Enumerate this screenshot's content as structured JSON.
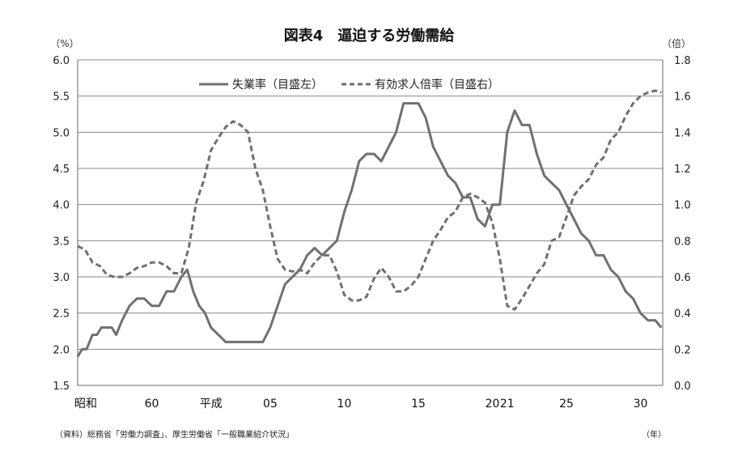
{
  "chart_data": {
    "type": "line",
    "title": "図表4　逼迫する労働需給",
    "y_left_unit": "（%）",
    "y_right_unit": "（倍）",
    "x_unit": "（年）",
    "y_left_range": [
      1.5,
      6.0
    ],
    "y_right_range": [
      0.0,
      1.8
    ],
    "y_left_ticks": [
      "6.0",
      "5.5",
      "5.0",
      "4.5",
      "4.0",
      "3.5",
      "3.0",
      "2.5",
      "2.0",
      "1.5"
    ],
    "y_right_ticks": [
      "1.8",
      "1.6",
      "1.4",
      "1.2",
      "1.0",
      "0.8",
      "0.6",
      "0.4",
      "0.2",
      "0.0"
    ],
    "x_range": [
      1980,
      2019.5
    ],
    "x_ticks": [
      {
        "x": 1980,
        "label": "昭和"
      },
      {
        "x": 1985,
        "label": "60"
      },
      {
        "x": 1989,
        "label": "平成"
      },
      {
        "x": 1993,
        "label": "05"
      },
      {
        "x": 1998,
        "label": "10"
      },
      {
        "x": 2003,
        "label": "15"
      },
      {
        "x": 2008,
        "label": "20"
      },
      {
        "x": 2009,
        "label": "21"
      },
      {
        "x": 2013,
        "label": "25"
      },
      {
        "x": 2018,
        "label": "30"
      }
    ],
    "grid": "horizontal",
    "legend_position": "top",
    "series": [
      {
        "name": "失業率（目盛左）",
        "axis": "left",
        "style": "solid",
        "color": "#707070",
        "points": [
          [
            1980.0,
            1.9
          ],
          [
            1980.3,
            2.0
          ],
          [
            1980.6,
            2.0
          ],
          [
            1981.0,
            2.2
          ],
          [
            1981.3,
            2.2
          ],
          [
            1981.6,
            2.3
          ],
          [
            1982.0,
            2.3
          ],
          [
            1982.3,
            2.3
          ],
          [
            1982.6,
            2.2
          ],
          [
            1983.0,
            2.4
          ],
          [
            1983.5,
            2.6
          ],
          [
            1984.0,
            2.7
          ],
          [
            1984.5,
            2.7
          ],
          [
            1985.0,
            2.6
          ],
          [
            1985.5,
            2.6
          ],
          [
            1986.0,
            2.8
          ],
          [
            1986.5,
            2.8
          ],
          [
            1987.0,
            3.0
          ],
          [
            1987.4,
            3.1
          ],
          [
            1987.8,
            2.8
          ],
          [
            1988.2,
            2.6
          ],
          [
            1988.6,
            2.5
          ],
          [
            1989.0,
            2.3
          ],
          [
            1989.5,
            2.2
          ],
          [
            1990.0,
            2.1
          ],
          [
            1990.5,
            2.1
          ],
          [
            1991.0,
            2.1
          ],
          [
            1991.5,
            2.1
          ],
          [
            1992.0,
            2.1
          ],
          [
            1992.5,
            2.1
          ],
          [
            1993.0,
            2.3
          ],
          [
            1993.5,
            2.6
          ],
          [
            1994.0,
            2.9
          ],
          [
            1994.5,
            3.0
          ],
          [
            1995.0,
            3.1
          ],
          [
            1995.5,
            3.3
          ],
          [
            1996.0,
            3.4
          ],
          [
            1996.5,
            3.3
          ],
          [
            1997.0,
            3.4
          ],
          [
            1997.5,
            3.5
          ],
          [
            1998.0,
            3.9
          ],
          [
            1998.5,
            4.2
          ],
          [
            1999.0,
            4.6
          ],
          [
            1999.5,
            4.7
          ],
          [
            2000.0,
            4.7
          ],
          [
            2000.5,
            4.6
          ],
          [
            2001.0,
            4.8
          ],
          [
            2001.5,
            5.0
          ],
          [
            2002.0,
            5.4
          ],
          [
            2002.5,
            5.4
          ],
          [
            2003.0,
            5.4
          ],
          [
            2003.5,
            5.2
          ],
          [
            2004.0,
            4.8
          ],
          [
            2004.5,
            4.6
          ],
          [
            2005.0,
            4.4
          ],
          [
            2005.5,
            4.3
          ],
          [
            2006.0,
            4.1
          ],
          [
            2006.5,
            4.1
          ],
          [
            2007.0,
            3.8
          ],
          [
            2007.5,
            3.7
          ],
          [
            2008.0,
            4.0
          ],
          [
            2008.5,
            4.0
          ],
          [
            2009.0,
            5.0
          ],
          [
            2009.5,
            5.3
          ],
          [
            2010.0,
            5.1
          ],
          [
            2010.5,
            5.1
          ],
          [
            2011.0,
            4.7
          ],
          [
            2011.5,
            4.4
          ],
          [
            2012.0,
            4.3
          ],
          [
            2012.5,
            4.2
          ],
          [
            2013.0,
            4.0
          ],
          [
            2013.5,
            3.8
          ],
          [
            2014.0,
            3.6
          ],
          [
            2014.5,
            3.5
          ],
          [
            2015.0,
            3.3
          ],
          [
            2015.5,
            3.3
          ],
          [
            2016.0,
            3.1
          ],
          [
            2016.5,
            3.0
          ],
          [
            2017.0,
            2.8
          ],
          [
            2017.5,
            2.7
          ],
          [
            2018.0,
            2.5
          ],
          [
            2018.5,
            2.4
          ],
          [
            2019.0,
            2.4
          ],
          [
            2019.4,
            2.3
          ]
        ]
      },
      {
        "name": "有効求人倍率（目盛右）",
        "axis": "right",
        "style": "dashed",
        "color": "#707070",
        "points": [
          [
            1980.0,
            0.77
          ],
          [
            1980.5,
            0.75
          ],
          [
            1981.0,
            0.68
          ],
          [
            1981.5,
            0.66
          ],
          [
            1982.0,
            0.61
          ],
          [
            1982.5,
            0.6
          ],
          [
            1983.0,
            0.6
          ],
          [
            1983.5,
            0.62
          ],
          [
            1984.0,
            0.65
          ],
          [
            1984.5,
            0.66
          ],
          [
            1985.0,
            0.68
          ],
          [
            1985.5,
            0.68
          ],
          [
            1986.0,
            0.66
          ],
          [
            1986.5,
            0.62
          ],
          [
            1987.0,
            0.62
          ],
          [
            1987.5,
            0.76
          ],
          [
            1988.0,
            1.01
          ],
          [
            1988.5,
            1.13
          ],
          [
            1989.0,
            1.3
          ],
          [
            1989.5,
            1.37
          ],
          [
            1990.0,
            1.43
          ],
          [
            1990.5,
            1.46
          ],
          [
            1991.0,
            1.44
          ],
          [
            1991.5,
            1.4
          ],
          [
            1992.0,
            1.2
          ],
          [
            1992.5,
            1.08
          ],
          [
            1993.0,
            0.88
          ],
          [
            1993.5,
            0.7
          ],
          [
            1994.0,
            0.64
          ],
          [
            1994.5,
            0.63
          ],
          [
            1995.0,
            0.64
          ],
          [
            1995.5,
            0.62
          ],
          [
            1996.0,
            0.68
          ],
          [
            1996.5,
            0.72
          ],
          [
            1997.0,
            0.72
          ],
          [
            1997.5,
            0.63
          ],
          [
            1998.0,
            0.5
          ],
          [
            1998.5,
            0.47
          ],
          [
            1999.0,
            0.47
          ],
          [
            1999.5,
            0.49
          ],
          [
            2000.0,
            0.59
          ],
          [
            2000.5,
            0.65
          ],
          [
            2001.0,
            0.6
          ],
          [
            2001.5,
            0.52
          ],
          [
            2002.0,
            0.52
          ],
          [
            2002.5,
            0.55
          ],
          [
            2003.0,
            0.6
          ],
          [
            2003.5,
            0.7
          ],
          [
            2004.0,
            0.8
          ],
          [
            2004.5,
            0.86
          ],
          [
            2005.0,
            0.93
          ],
          [
            2005.5,
            0.96
          ],
          [
            2006.0,
            1.04
          ],
          [
            2006.5,
            1.06
          ],
          [
            2007.0,
            1.04
          ],
          [
            2007.5,
            1.01
          ],
          [
            2008.0,
            0.9
          ],
          [
            2008.5,
            0.7
          ],
          [
            2009.0,
            0.44
          ],
          [
            2009.5,
            0.42
          ],
          [
            2010.0,
            0.48
          ],
          [
            2010.5,
            0.55
          ],
          [
            2011.0,
            0.62
          ],
          [
            2011.5,
            0.67
          ],
          [
            2012.0,
            0.8
          ],
          [
            2012.5,
            0.82
          ],
          [
            2013.0,
            0.93
          ],
          [
            2013.5,
            1.05
          ],
          [
            2014.0,
            1.1
          ],
          [
            2014.5,
            1.14
          ],
          [
            2015.0,
            1.22
          ],
          [
            2015.5,
            1.26
          ],
          [
            2016.0,
            1.36
          ],
          [
            2016.5,
            1.4
          ],
          [
            2017.0,
            1.49
          ],
          [
            2017.5,
            1.56
          ],
          [
            2018.0,
            1.6
          ],
          [
            2018.5,
            1.62
          ],
          [
            2019.0,
            1.63
          ],
          [
            2019.4,
            1.62
          ]
        ]
      }
    ]
  },
  "source_note": "（資料）総務省「労働力調査」、厚生労働省「一般職業紹介状況」"
}
